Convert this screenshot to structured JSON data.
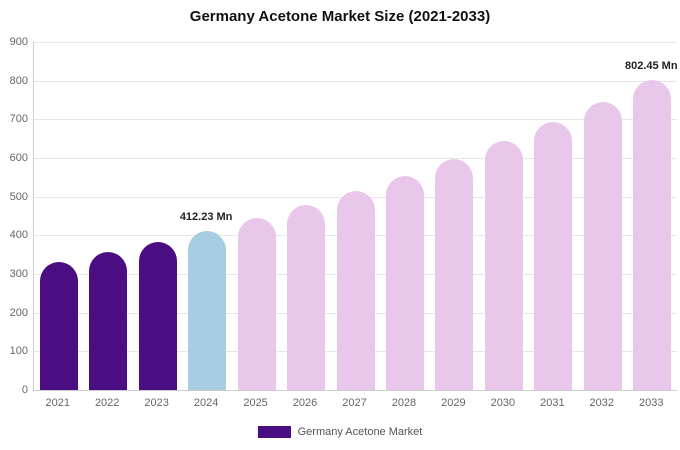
{
  "chart": {
    "title": "Germany Acetone Market Size (2021-2033)",
    "legend": "Germany Acetone Market"
  },
  "chart_data": {
    "type": "bar",
    "title": "Germany Acetone Market Size (2021-2033)",
    "categories": [
      "2021",
      "2022",
      "2023",
      "2024",
      "2025",
      "2026",
      "2027",
      "2028",
      "2029",
      "2030",
      "2031",
      "2032",
      "2033"
    ],
    "values": [
      330,
      356,
      383,
      412.23,
      444,
      478,
      515,
      554,
      597,
      643,
      692,
      745,
      802.45
    ],
    "unit": "Mn",
    "xlabel": "",
    "ylabel": "",
    "ylim": [
      0,
      900
    ],
    "yticks": [
      0,
      100,
      200,
      300,
      400,
      500,
      600,
      700,
      800,
      900
    ],
    "grid": true,
    "legend_position": "bottom",
    "legend_label": "Germany Acetone Market",
    "colors": {
      "historical": "#4b0e82",
      "current_year": "#a7cde2",
      "forecast": "#e9c7eb"
    },
    "bar_color_keys": [
      "historical",
      "historical",
      "historical",
      "current_year",
      "forecast",
      "forecast",
      "forecast",
      "forecast",
      "forecast",
      "forecast",
      "forecast",
      "forecast",
      "forecast"
    ],
    "annotations": [
      {
        "category": "2024",
        "text": "412.23 Mn"
      },
      {
        "category": "2033",
        "text": "802.45 Mn"
      }
    ]
  }
}
